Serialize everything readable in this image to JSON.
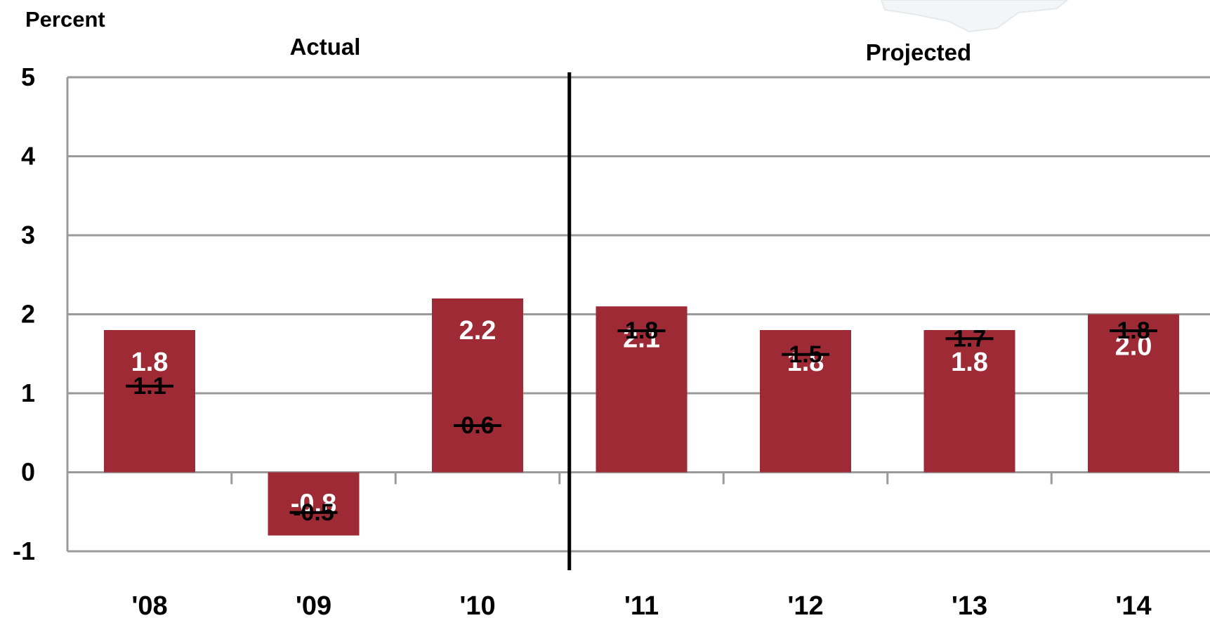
{
  "chart_data": {
    "type": "bar",
    "ylabel": "Percent",
    "ylim": [
      -1,
      5
    ],
    "yticks": [
      5,
      4,
      3,
      2,
      1,
      0,
      -1
    ],
    "grid": true,
    "categories": [
      "'08",
      "'09",
      "'10",
      "'11",
      "'12",
      "'13",
      "'14"
    ],
    "values": [
      1.8,
      -0.8,
      2.2,
      2.1,
      1.8,
      1.8,
      2.0
    ],
    "value_labels": [
      "1.8",
      "-0.8",
      "2.2",
      "2.1",
      "1.8",
      "1.8",
      "2.0"
    ],
    "previous_estimates": [
      1.1,
      -0.5,
      0.6,
      1.8,
      1.5,
      1.7,
      1.8
    ],
    "previous_labels": [
      "1.1",
      "-0.5",
      "0.6",
      "1.8",
      "1.5",
      "1.7",
      "1.8"
    ],
    "sections": [
      {
        "label": "Actual",
        "categories": [
          "'08",
          "'09",
          "'10"
        ]
      },
      {
        "label": "Projected",
        "categories": [
          "'11",
          "'12",
          "'13",
          "'14"
        ]
      }
    ],
    "colors": {
      "bar": "#9E2A36",
      "grid": "#9a9a9a",
      "divider": "#000000",
      "text": "#000000",
      "bar_label": "#ffffff"
    }
  }
}
